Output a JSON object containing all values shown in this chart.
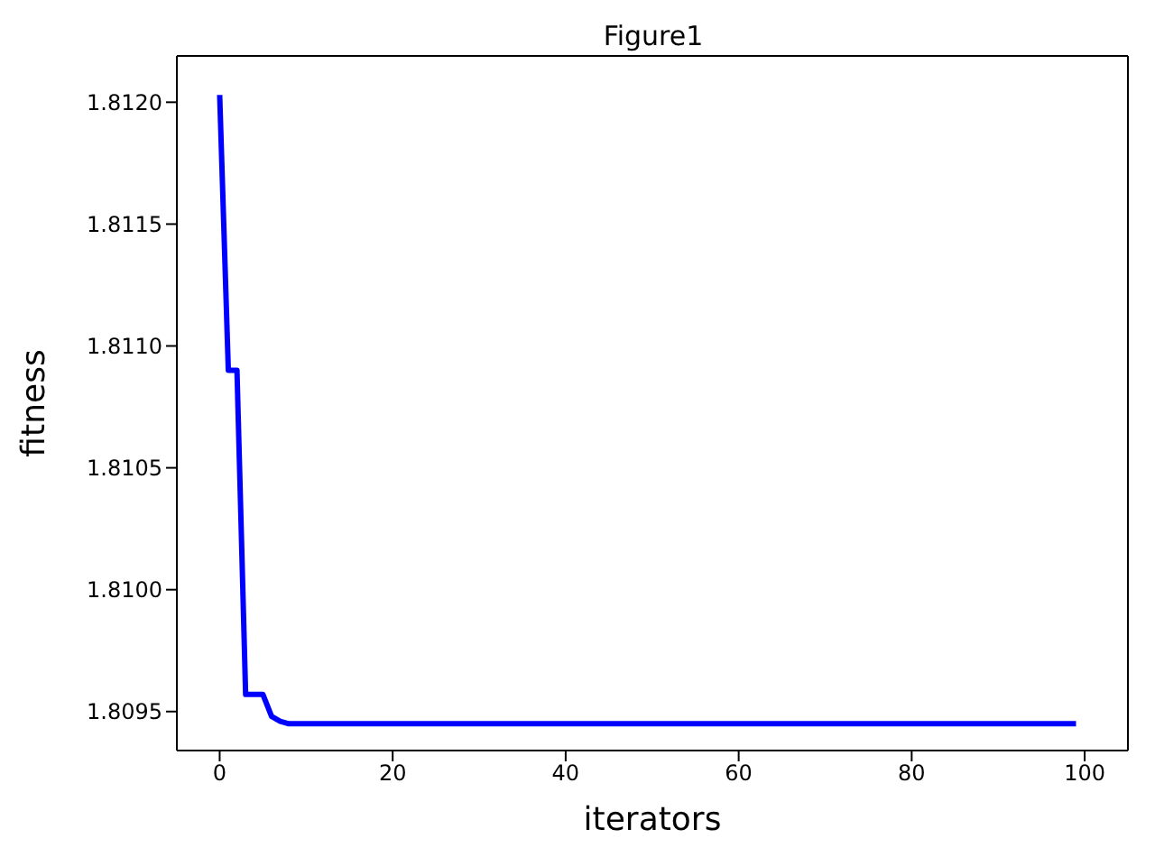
{
  "chart_data": {
    "type": "line",
    "title": "Figure1",
    "xlabel": "iterators",
    "ylabel": "fitness",
    "x": [
      0,
      1,
      2,
      3,
      4,
      5,
      6,
      7,
      8,
      99
    ],
    "series": [
      {
        "color": "#0000ff",
        "values": [
          1.81203,
          1.8109,
          1.8109,
          1.80957,
          1.80957,
          1.80957,
          1.80948,
          1.80946,
          1.80945,
          1.80945
        ]
      }
    ],
    "xlim": [
      -4.95,
      105
    ],
    "xticks": [
      0,
      20,
      40,
      60,
      80,
      100
    ],
    "ylim": [
      1.80934,
      1.81219
    ],
    "yticks": [
      1.8095,
      {
        "value": 1.81,
        "label": "1.8100"
      },
      1.8105,
      {
        "value": 1.811,
        "label": "1.8110"
      },
      1.8115,
      {
        "value": 1.812,
        "label": "1.8120"
      }
    ],
    "grid": false,
    "legend": false,
    "marker": "none",
    "line_style": "solid"
  }
}
